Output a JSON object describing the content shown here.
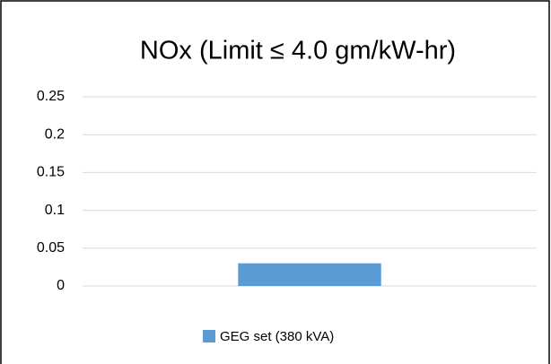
{
  "chart_data": {
    "type": "bar",
    "title": "NOx (Limit ≤ 4.0 gm/kW-hr)",
    "categories": [
      null
    ],
    "series": [
      {
        "name": "GEG set (380 kVA)",
        "color": "#5b9bd5",
        "values": [
          0.03
        ]
      }
    ],
    "ylim": [
      0,
      0.25
    ],
    "yticks": [
      0,
      0.05,
      0.1,
      0.15,
      0.2,
      0.25
    ],
    "grid": true,
    "legend": "bottom"
  }
}
